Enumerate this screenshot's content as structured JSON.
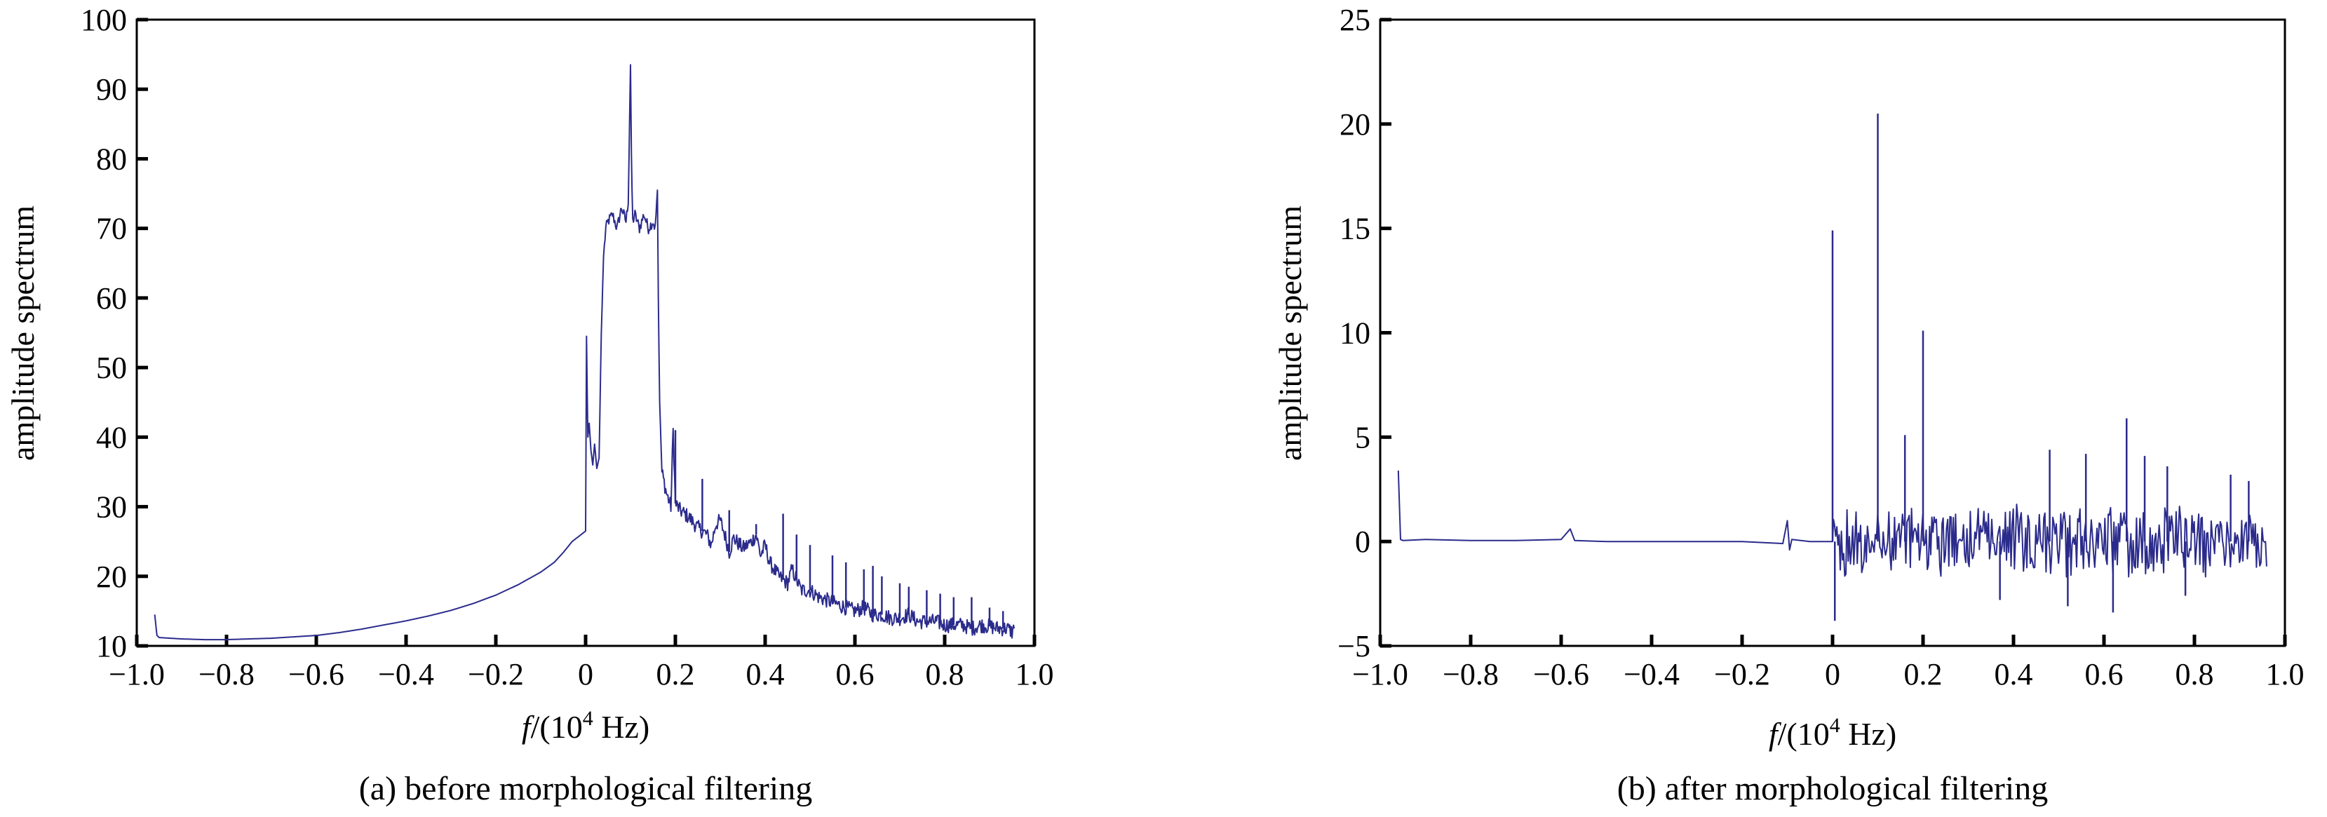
{
  "chart_data": [
    {
      "type": "line",
      "caption": "(a) before morphological filtering",
      "xlabel_prefix": "f",
      "xlabel_mid": "/(10",
      "xlabel_exp": "4",
      "xlabel_suffix": " Hz)",
      "ylabel": "amplitude spectrum",
      "xlim": [
        -1.0,
        1.0
      ],
      "ylim": [
        10,
        100
      ],
      "xticks": [
        "−1.0",
        "−0.8",
        "−0.6",
        "−0.4",
        "−0.2",
        "0",
        "0.2",
        "0.4",
        "0.6",
        "0.8",
        "1.0"
      ],
      "yticks": [
        "10",
        "20",
        "30",
        "40",
        "50",
        "60",
        "70",
        "80",
        "90",
        "100"
      ],
      "line_color": "#2b2b8c",
      "series": [
        {
          "x": [
            -0.96,
            -0.955,
            -0.95,
            -0.9,
            -0.85,
            -0.8,
            -0.75,
            -0.7,
            -0.65,
            -0.6,
            -0.55,
            -0.5,
            -0.45,
            -0.4,
            -0.35,
            -0.3,
            -0.25,
            -0.2,
            -0.15,
            -0.1,
            -0.07,
            -0.05,
            -0.03,
            -0.01,
            0.0,
            0.002,
            0.005,
            0.008,
            0.012,
            0.016,
            0.02,
            0.025,
            0.03,
            0.035,
            0.04,
            0.045,
            0.05,
            0.06,
            0.07,
            0.08,
            0.09,
            0.095,
            0.1,
            0.102,
            0.105,
            0.11,
            0.12,
            0.13,
            0.14,
            0.15,
            0.155,
            0.16,
            0.162,
            0.165,
            0.17,
            0.18,
            0.185,
            0.19,
            0.195,
            0.2,
            0.21,
            0.22,
            0.23,
            0.25,
            0.27,
            0.28,
            0.29,
            0.3,
            0.31,
            0.32,
            0.33,
            0.35,
            0.37,
            0.38,
            0.39,
            0.4,
            0.41,
            0.43,
            0.45,
            0.46,
            0.48,
            0.5,
            0.52,
            0.54,
            0.56,
            0.58,
            0.6,
            0.62,
            0.64,
            0.66,
            0.68,
            0.7,
            0.72,
            0.74,
            0.76,
            0.78,
            0.8,
            0.82,
            0.84,
            0.86,
            0.88,
            0.9,
            0.92,
            0.94,
            0.95,
            0.955
          ],
          "y": [
            14.5,
            11.5,
            11.2,
            11.0,
            10.9,
            10.9,
            11.0,
            11.1,
            11.3,
            11.5,
            11.9,
            12.4,
            13.0,
            13.6,
            14.3,
            15.1,
            16.1,
            17.3,
            18.8,
            20.6,
            22.0,
            23.4,
            25.0,
            26.0,
            26.5,
            54.5,
            40.0,
            42.0,
            38.0,
            36.0,
            39.0,
            35.5,
            37.0,
            55.0,
            66.0,
            70.0,
            71.0,
            72.0,
            70.0,
            73.0,
            71.0,
            74.0,
            93.5,
            80.0,
            71.0,
            72.0,
            70.0,
            72.0,
            70.0,
            71.0,
            70.0,
            75.5,
            60.0,
            45.0,
            35.0,
            32.0,
            31.0,
            30.0,
            41.0,
            30.5,
            29.5,
            29.0,
            28.5,
            27.0,
            26.0,
            24.5,
            27.5,
            28.0,
            26.0,
            23.5,
            25.5,
            24.0,
            25.0,
            26.0,
            23.0,
            24.5,
            22.0,
            20.0,
            19.0,
            21.0,
            18.0,
            18.0,
            17.0,
            16.5,
            16.0,
            15.5,
            15.0,
            15.5,
            14.5,
            14.5,
            14.0,
            14.0,
            14.5,
            13.5,
            13.5,
            13.5,
            13.0,
            13.0,
            13.0,
            12.5,
            13.0,
            12.8,
            12.5,
            12.5,
            12.0,
            12.5
          ],
          "spikes": [
            [
              0.2,
              41.0
            ],
            [
              0.26,
              34.0
            ],
            [
              0.32,
              29.5
            ],
            [
              0.38,
              27.5
            ],
            [
              0.44,
              29.0
            ],
            [
              0.47,
              26.0
            ],
            [
              0.5,
              24.5
            ],
            [
              0.55,
              23.0
            ],
            [
              0.58,
              22.0
            ],
            [
              0.62,
              21.0
            ],
            [
              0.64,
              21.5
            ],
            [
              0.66,
              20.0
            ],
            [
              0.7,
              19.0
            ],
            [
              0.72,
              18.5
            ],
            [
              0.76,
              18.0
            ],
            [
              0.79,
              17.5
            ],
            [
              0.82,
              17.0
            ],
            [
              0.86,
              17.0
            ],
            [
              0.9,
              15.5
            ],
            [
              0.93,
              15.0
            ]
          ]
        }
      ]
    },
    {
      "type": "line",
      "caption": "(b) after morphological filtering",
      "xlabel_prefix": "f",
      "xlabel_mid": "/(10",
      "xlabel_exp": "4",
      "xlabel_suffix": " Hz)",
      "ylabel": "amplitude spectrum",
      "xlim": [
        -1.0,
        1.0
      ],
      "ylim": [
        -5,
        25
      ],
      "xticks": [
        "−1.0",
        "−0.8",
        "−0.6",
        "−0.4",
        "−0.2",
        "0",
        "0.2",
        "0.4",
        "0.6",
        "0.8",
        "1.0"
      ],
      "yticks": [
        "−5",
        "0",
        "5",
        "10",
        "15",
        "20",
        "25"
      ],
      "line_color": "#2b2b8c",
      "series": [
        {
          "x": [
            -0.96,
            -0.955,
            -0.95,
            -0.9,
            -0.8,
            -0.7,
            -0.6,
            -0.58,
            -0.57,
            -0.5,
            -0.4,
            -0.3,
            -0.2,
            -0.11,
            -0.1,
            -0.095,
            -0.09,
            -0.05,
            0.0
          ],
          "y": [
            3.4,
            0.1,
            0.05,
            0.1,
            0.05,
            0.05,
            0.1,
            0.6,
            0.05,
            0.0,
            0.0,
            0.0,
            0.0,
            -0.1,
            1.0,
            -0.4,
            0.1,
            0.0,
            0.0
          ],
          "noise_range": [
            0.0,
            0.96
          ],
          "spikes": [
            [
              0.0,
              14.9
            ],
            [
              0.1,
              20.5
            ],
            [
              0.16,
              5.1
            ],
            [
              0.2,
              10.1
            ],
            [
              0.48,
              4.4
            ],
            [
              0.56,
              4.2
            ],
            [
              0.65,
              5.9
            ],
            [
              0.69,
              4.1
            ],
            [
              0.74,
              3.6
            ],
            [
              0.88,
              3.2
            ],
            [
              0.92,
              2.9
            ],
            [
              0.005,
              -3.8
            ],
            [
              0.37,
              -2.8
            ],
            [
              0.52,
              -3.1
            ],
            [
              0.62,
              -3.4
            ],
            [
              0.78,
              -2.6
            ]
          ]
        }
      ]
    }
  ]
}
